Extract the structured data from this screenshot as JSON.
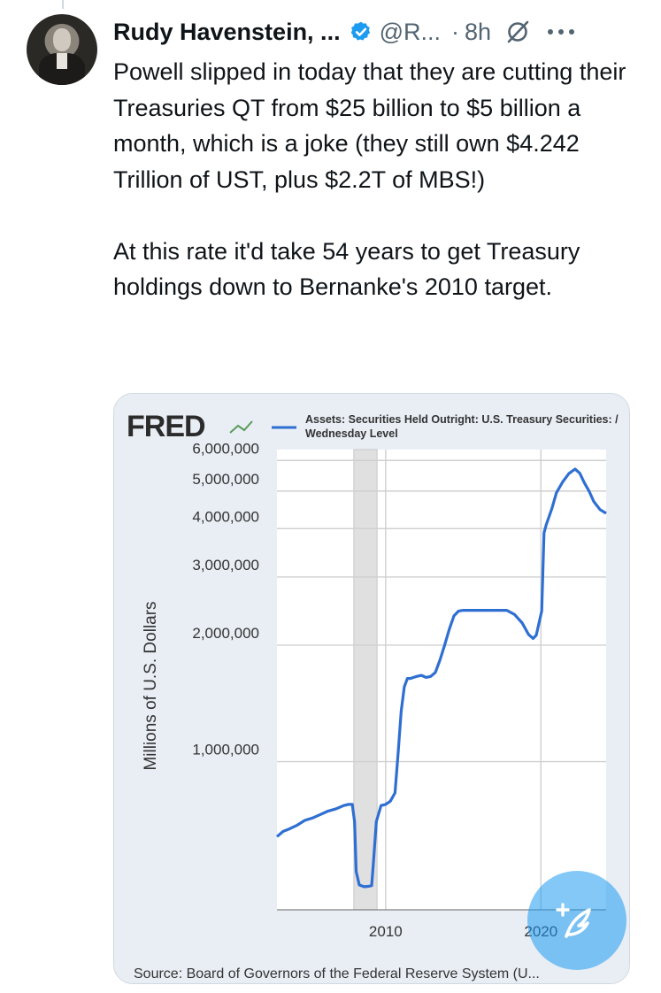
{
  "tweet": {
    "author_name": "Rudy Havenstein, ...",
    "handle": "@R...",
    "separator": "·",
    "time": "8h",
    "text": "Powell slipped in today that they are cutting their Treasuries QT from $25 billion to $5 billion a month, which is a joke (they still own $4.242 Trillion of UST, plus $2.2T of MBS!)\n\nAt this rate it'd take 54 years to get Treasury holdings down to Bernanke's 2010 target.",
    "icons": [
      "verified-badge-icon",
      "grok-icon",
      "more-options-icon",
      "compose-post-icon"
    ],
    "colors": {
      "accent": "#1d9bf0",
      "secondary_text": "#536471",
      "series_line": "#2f6fd2"
    }
  },
  "chart_data": {
    "type": "line",
    "logo": "FRED",
    "title": "Assets: Securities Held Outright: U.S. Treasury Securities: /",
    "subtitle": "Wednesday Level",
    "ylabel": "Millions of U.S. Dollars",
    "yscale": "log",
    "yticks": [
      1000000,
      2000000,
      3000000,
      4000000,
      5000000,
      6000000
    ],
    "ytick_labels": [
      "1,000,000",
      "2,000,000",
      "3,000,000",
      "4,000,000",
      "5,000,000",
      "6,000,000"
    ],
    "xticks": [
      2010,
      2020
    ],
    "xtick_labels": [
      "2010",
      "2020"
    ],
    "xlim": [
      2003.0,
      2024.2
    ],
    "ylim": [
      414000,
      6400000
    ],
    "recession_bands": [
      [
        2007.95,
        2009.45
      ]
    ],
    "grid": true,
    "source": "Source: Board of Governors of the Federal Reserve System (U...",
    "series": [
      {
        "x": [
          2003.0,
          2003.4,
          2003.8,
          2004.3,
          2004.8,
          2005.3,
          2005.8,
          2006.3,
          2006.8,
          2007.3,
          2007.6,
          2007.85,
          2008.0,
          2008.1,
          2008.3,
          2008.6,
          2008.9,
          2009.1,
          2009.2,
          2009.4,
          2009.7,
          2010.0,
          2010.3,
          2010.6,
          2010.8,
          2011.0,
          2011.2,
          2011.4,
          2011.6,
          2011.8,
          2012.0,
          2012.3,
          2012.6,
          2012.9,
          2013.2,
          2013.5,
          2013.8,
          2014.1,
          2014.4,
          2014.7,
          2015.0,
          2016.0,
          2017.0,
          2017.8,
          2018.3,
          2018.8,
          2019.2,
          2019.5,
          2019.7,
          2019.9,
          2020.05,
          2020.2,
          2020.35,
          2020.7,
          2021.0,
          2021.4,
          2021.8,
          2022.2,
          2022.5,
          2022.8,
          2023.1,
          2023.4,
          2023.8,
          2024.2
        ],
        "y": [
          640000,
          660000,
          670000,
          685000,
          705000,
          715000,
          730000,
          745000,
          755000,
          770000,
          775000,
          775000,
          700000,
          520000,
          480000,
          475000,
          476000,
          478000,
          540000,
          700000,
          770000,
          775000,
          790000,
          830000,
          1050000,
          1350000,
          1560000,
          1640000,
          1640000,
          1650000,
          1660000,
          1670000,
          1650000,
          1660000,
          1700000,
          1830000,
          2000000,
          2200000,
          2380000,
          2450000,
          2460000,
          2460000,
          2460000,
          2460000,
          2400000,
          2280000,
          2130000,
          2080000,
          2120000,
          2300000,
          2450000,
          3900000,
          4100000,
          4500000,
          4950000,
          5280000,
          5550000,
          5700000,
          5560000,
          5250000,
          5000000,
          4700000,
          4480000,
          4380000
        ]
      }
    ]
  }
}
